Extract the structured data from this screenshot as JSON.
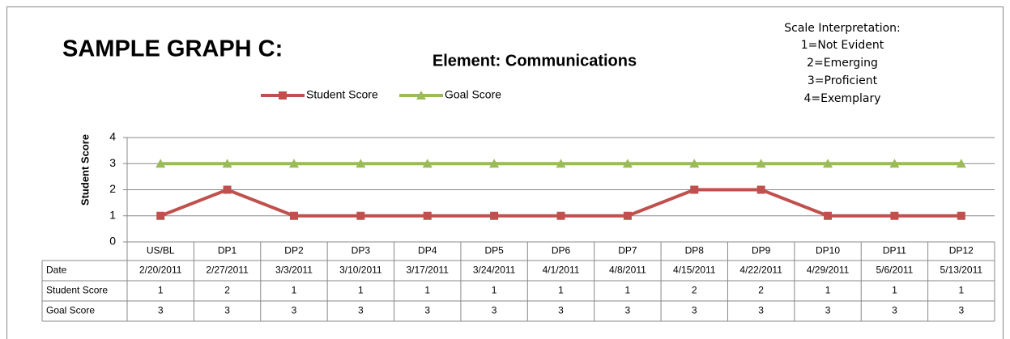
{
  "chart_data": {
    "type": "line",
    "title": "SAMPLE GRAPH C:",
    "subtitle": "Element: Communications",
    "ylabel": "Student Score",
    "note": {
      "title": "Scale Interpretation:",
      "lines": [
        "1=Not Evident",
        "2=Emerging",
        "3=Proficient",
        "4=Exemplary"
      ]
    },
    "categories": [
      "US/BL",
      "DP1",
      "DP2",
      "DP3",
      "DP4",
      "DP5",
      "DP6",
      "DP7",
      "DP8",
      "DP9",
      "DP10",
      "DP11",
      "DP12"
    ],
    "date_label": "Date",
    "dates": [
      "2/20/2011",
      "2/27/2011",
      "3/3/2011",
      "3/10/2011",
      "3/17/2011",
      "3/24/2011",
      "4/1/2011",
      "4/8/2011",
      "4/15/2011",
      "4/22/2011",
      "4/29/2011",
      "5/6/2011",
      "5/13/2011"
    ],
    "series": [
      {
        "name": "Student Score",
        "color": "#c0504d",
        "marker": "square",
        "values": [
          1,
          2,
          1,
          1,
          1,
          1,
          1,
          1,
          2,
          2,
          1,
          1,
          1
        ]
      },
      {
        "name": "Goal Score",
        "color": "#9bbb59",
        "marker": "triangle",
        "values": [
          3,
          3,
          3,
          3,
          3,
          3,
          3,
          3,
          3,
          3,
          3,
          3,
          3
        ]
      }
    ],
    "ylim": [
      0,
      4
    ],
    "yticks": [
      0,
      1,
      2,
      3,
      4
    ],
    "grid": true
  }
}
